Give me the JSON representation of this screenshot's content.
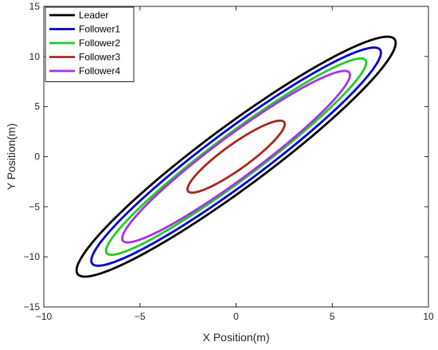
{
  "chart_data": {
    "type": "line",
    "title": "",
    "xlabel": "X Position(m)",
    "ylabel": "Y Position(m)",
    "xlim": [
      -10,
      10
    ],
    "ylim": [
      -15,
      15
    ],
    "x_ticks": [
      -10,
      -5,
      0,
      5,
      10
    ],
    "y_ticks": [
      -15,
      -10,
      -5,
      0,
      5,
      10,
      15
    ],
    "x_tick_labels": [
      "−10",
      "−5",
      "0",
      "5",
      "10"
    ],
    "y_tick_labels": [
      "−15",
      "−10",
      "−5",
      "0",
      "5",
      "10",
      "15"
    ],
    "grid": false,
    "legend_position": "top-left",
    "series": [
      {
        "name": "Leader",
        "color": "#000000",
        "center": [
          0,
          0
        ],
        "semi_major": 14.4,
        "semi_minor": 2.2,
        "angle_deg": 55.8
      },
      {
        "name": "Follower1",
        "color": "#0000d0",
        "center": [
          0,
          0
        ],
        "semi_major": 13.1,
        "semi_minor": 1.9,
        "angle_deg": 55.8
      },
      {
        "name": "Follower2",
        "color": "#22cc22",
        "center": [
          0,
          0
        ],
        "semi_major": 11.8,
        "semi_minor": 1.6,
        "angle_deg": 55.8
      },
      {
        "name": "Follower3",
        "color": "#a52a1a",
        "center": [
          0,
          0
        ],
        "semi_major": 4.3,
        "semi_minor": 0.9,
        "angle_deg": 55.8
      },
      {
        "name": "Follower4",
        "color": "#a832e6",
        "center": [
          0,
          0
        ],
        "semi_major": 10.3,
        "semi_minor": 1.5,
        "angle_deg": 55.8
      }
    ]
  }
}
